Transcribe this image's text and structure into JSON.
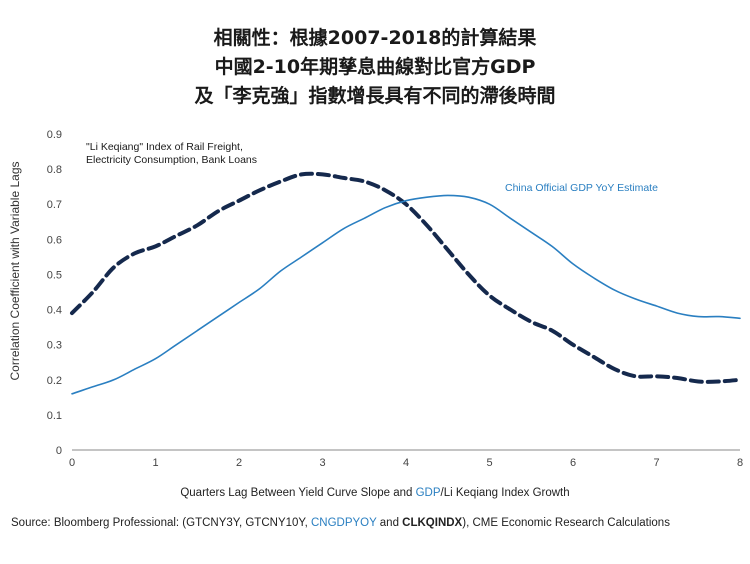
{
  "title": {
    "line1": "相關性：根據2007-2018的計算結果",
    "line2": "中國2-10年期孳息曲線對比官方GDP",
    "line3": "及「李克強」指數增長具有不同的滯後時間"
  },
  "x_title": {
    "prefix": "Quarters Lag Between Yield Curve Slope and ",
    "gdp": "GDP",
    "slash_lk": "/Li Keqiang",
    "suffix": " Index Growth"
  },
  "source": {
    "prefix": "Source: Bloomberg Professional: (GTCNY3Y, GTCNY10Y, ",
    "cngdp": "CNGDPYOY",
    "and": " and ",
    "clkq": "CLKQINDX",
    "suffix": "), CME Economic Research Calculations"
  },
  "annotations": {
    "li_line1": "\"Li Keqiang\" Index of Rail Freight,",
    "li_line2": "Electricity Consumption, Bank Loans",
    "gdp": "China Official GDP YoY Estimate"
  },
  "colors": {
    "gdp_line": "#2a7fc1",
    "li_line": "#15294d",
    "axis": "#888888"
  },
  "chart_data": {
    "type": "line",
    "ylabel": "Correlation Coefficient with Variable Lags",
    "xlabel": "Quarters Lag Between Yield Curve Slope and GDP/Li Keqiang Index Growth",
    "xlim": [
      0,
      8
    ],
    "ylim": [
      0,
      0.9
    ],
    "x_ticks": [
      "0",
      "1",
      "2",
      "3",
      "4",
      "5",
      "6",
      "7",
      "8"
    ],
    "y_ticks": [
      "0",
      "0.1",
      "0.2",
      "0.3",
      "0.4",
      "0.5",
      "0.6",
      "0.7",
      "0.8",
      "0.9"
    ],
    "series": [
      {
        "name": "\"Li Keqiang\" Index of Rail Freight, Electricity Consumption, Bank Loans",
        "style": "dashed",
        "x": [
          0,
          0.25,
          0.5,
          0.75,
          1,
          1.25,
          1.5,
          1.75,
          2,
          2.25,
          2.5,
          2.75,
          3,
          3.25,
          3.5,
          3.75,
          4,
          4.25,
          4.5,
          4.75,
          5,
          5.25,
          5.5,
          5.75,
          6,
          6.25,
          6.5,
          6.75,
          7,
          7.25,
          7.5,
          7.75,
          8
        ],
        "values": [
          0.39,
          0.45,
          0.52,
          0.56,
          0.58,
          0.61,
          0.64,
          0.68,
          0.71,
          0.74,
          0.765,
          0.785,
          0.785,
          0.775,
          0.765,
          0.74,
          0.7,
          0.64,
          0.57,
          0.5,
          0.44,
          0.4,
          0.365,
          0.34,
          0.3,
          0.265,
          0.23,
          0.21,
          0.21,
          0.205,
          0.195,
          0.195,
          0.2
        ]
      },
      {
        "name": "China Official GDP YoY Estimate",
        "style": "solid",
        "x": [
          0,
          0.25,
          0.5,
          0.75,
          1,
          1.25,
          1.5,
          1.75,
          2,
          2.25,
          2.5,
          2.75,
          3,
          3.25,
          3.5,
          3.75,
          4,
          4.25,
          4.5,
          4.75,
          5,
          5.25,
          5.5,
          5.75,
          6,
          6.25,
          6.5,
          6.75,
          7,
          7.25,
          7.5,
          7.75,
          8
        ],
        "values": [
          0.16,
          0.18,
          0.2,
          0.23,
          0.26,
          0.3,
          0.34,
          0.38,
          0.42,
          0.46,
          0.51,
          0.55,
          0.59,
          0.63,
          0.66,
          0.69,
          0.71,
          0.72,
          0.725,
          0.72,
          0.7,
          0.66,
          0.62,
          0.58,
          0.53,
          0.49,
          0.455,
          0.43,
          0.41,
          0.39,
          0.38,
          0.38,
          0.375
        ]
      }
    ]
  }
}
